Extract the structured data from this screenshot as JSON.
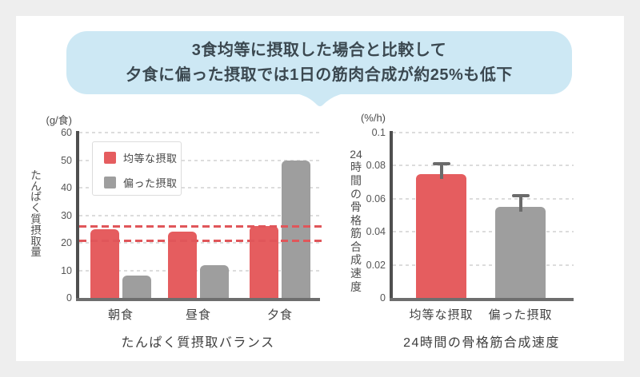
{
  "colors": {
    "page_bg": "#eeeeee",
    "card_bg": "#ffffff",
    "callout_bg": "#cde8f4",
    "callout_text": "#3b4850",
    "equal_intake": "#e55d5f",
    "skewed_intake": "#9e9e9e",
    "ref_line": "#e0565a",
    "error_bar": "#6b6b6b",
    "axis": "#4f4f4f"
  },
  "callout": {
    "line1": "3食均等に摂取した場合と比較して",
    "line2": "夕食に偏った摂取では1日の筋肉合成が約25%も低下"
  },
  "legend": {
    "equal_label": "均等な摂取",
    "skewed_label": "偏った摂取"
  },
  "chart_data": [
    {
      "type": "bar",
      "title": "たんぱく質摂取バランス",
      "unit": "(g/食)",
      "ylabel": "たんぱく質摂取量",
      "ylim": [
        0,
        60
      ],
      "yticks": [
        "0",
        "10",
        "20",
        "30",
        "40",
        "50",
        "60"
      ],
      "grid": "dashed",
      "legend_position": "upper-left",
      "categories": [
        "朝食",
        "昼食",
        "夕食"
      ],
      "series": [
        {
          "name": "均等な摂取",
          "color_key": "equal_intake",
          "values": [
            25,
            24,
            26
          ]
        },
        {
          "name": "偏った摂取",
          "color_key": "skewed_intake",
          "values": [
            8,
            12,
            50
          ]
        }
      ],
      "ref_lines": [
        26,
        21
      ]
    },
    {
      "type": "bar",
      "title": "24時間の骨格筋合成速度",
      "unit": "(%/h)",
      "ylabel": "24時間の骨格筋合成速度",
      "ylim": [
        0,
        0.1
      ],
      "yticks": [
        "0",
        "0.02",
        "0.04",
        "0.06",
        "0.08",
        "0.1"
      ],
      "grid": "dashed",
      "bars": [
        {
          "category": "均等な摂取",
          "value": 0.075,
          "error_top": 0.082,
          "color_key": "equal_intake"
        },
        {
          "category": "偏った摂取",
          "value": 0.055,
          "error_top": 0.063,
          "color_key": "skewed_intake"
        }
      ]
    }
  ]
}
